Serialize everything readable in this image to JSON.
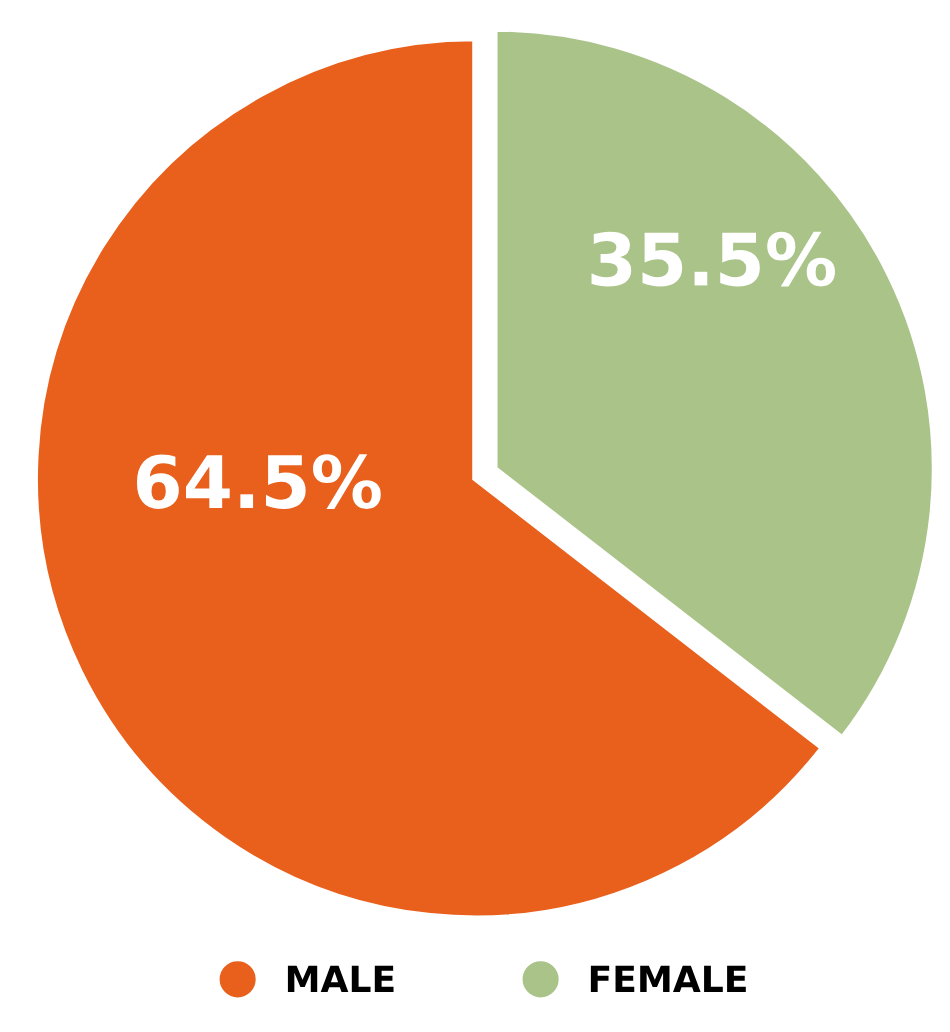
{
  "chart_data": {
    "type": "pie",
    "categories": [
      "MALE",
      "FEMALE"
    ],
    "values": [
      64.5,
      35.5
    ],
    "colors": [
      "#e8601c",
      "#a9c388"
    ],
    "value_labels": [
      "64.5%",
      "35.5%"
    ],
    "legend": "bottom"
  }
}
